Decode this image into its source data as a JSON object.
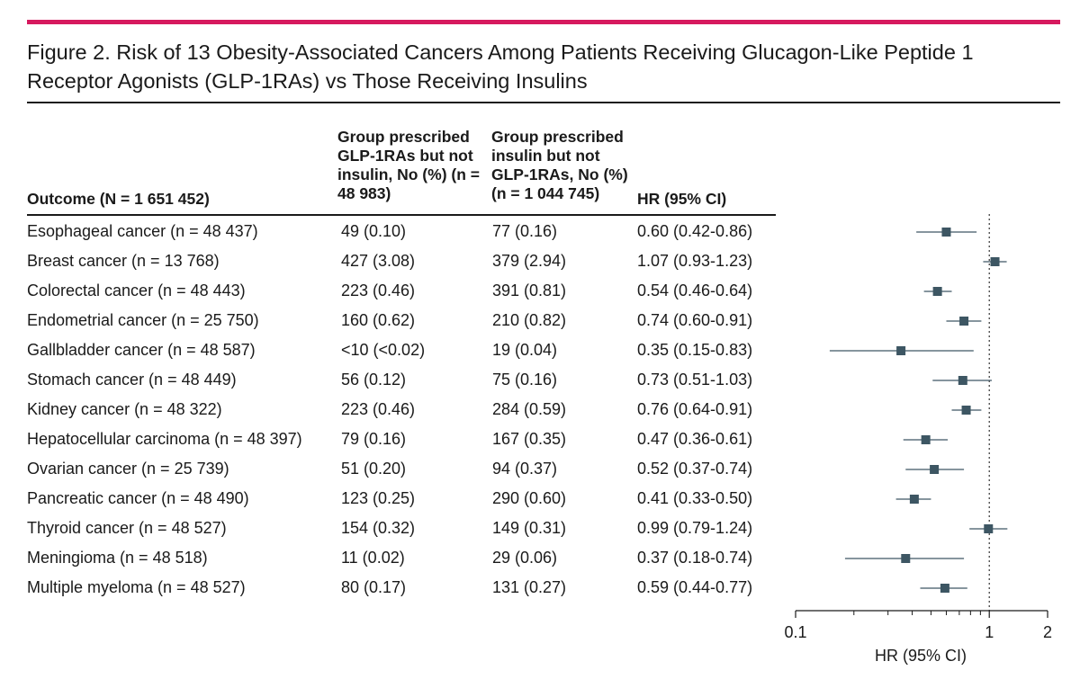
{
  "figure": {
    "title": "Figure 2. Risk of 13 Obesity-Associated Cancers Among Patients Receiving Glucagon-Like Peptide 1 Receptor Agonists (GLP-1RAs) vs Those Receiving Insulins"
  },
  "table": {
    "headers": {
      "outcome": "Outcome (N = 1 651 452)",
      "glp1": "Group prescribed GLP-1RAs but not insulin, No (%) (n = 48 983)",
      "insulin": "Group prescribed insulin but not GLP-1RAs, No (%) (n = 1 044 745)",
      "hr": "HR (95% CI)"
    },
    "rows": [
      {
        "outcome": "Esophageal cancer (n = 48 437)",
        "glp1": "49 (0.10)",
        "insulin": "77 (0.16)",
        "hr": "0.60 (0.42-0.86)"
      },
      {
        "outcome": "Breast cancer (n = 13 768)",
        "glp1": "427 (3.08)",
        "insulin": "379 (2.94)",
        "hr": "1.07 (0.93-1.23)"
      },
      {
        "outcome": "Colorectal cancer (n = 48 443)",
        "glp1": "223 (0.46)",
        "insulin": "391 (0.81)",
        "hr": "0.54 (0.46-0.64)"
      },
      {
        "outcome": "Endometrial cancer (n = 25 750)",
        "glp1": "160 (0.62)",
        "insulin": "210 (0.82)",
        "hr": "0.74 (0.60-0.91)"
      },
      {
        "outcome": "Gallbladder cancer (n = 48 587)",
        "glp1": "<10 (<0.02)",
        "insulin": "19 (0.04)",
        "hr": "0.35 (0.15-0.83)"
      },
      {
        "outcome": "Stomach cancer (n = 48 449)",
        "glp1": "56 (0.12)",
        "insulin": "75 (0.16)",
        "hr": "0.73 (0.51-1.03)"
      },
      {
        "outcome": "Kidney cancer (n = 48 322)",
        "glp1": "223 (0.46)",
        "insulin": "284 (0.59)",
        "hr": "0.76 (0.64-0.91)"
      },
      {
        "outcome": "Hepatocellular carcinoma (n = 48 397)",
        "glp1": "79 (0.16)",
        "insulin": "167 (0.35)",
        "hr": "0.47 (0.36-0.61)"
      },
      {
        "outcome": "Ovarian cancer (n = 25 739)",
        "glp1": "51 (0.20)",
        "insulin": "94 (0.37)",
        "hr": "0.52 (0.37-0.74)"
      },
      {
        "outcome": "Pancreatic cancer (n = 48 490)",
        "glp1": "123 (0.25)",
        "insulin": "290 (0.60)",
        "hr": "0.41 (0.33-0.50)"
      },
      {
        "outcome": "Thyroid cancer (n = 48 527)",
        "glp1": "154 (0.32)",
        "insulin": "149 (0.31)",
        "hr": "0.99 (0.79-1.24)"
      },
      {
        "outcome": "Meningioma (n = 48 518)",
        "glp1": "11 (0.02)",
        "insulin": "29 (0.06)",
        "hr": "0.37 (0.18-0.74)"
      },
      {
        "outcome": "Multiple myeloma (n = 48 527)",
        "glp1": "80 (0.17)",
        "insulin": "131 (0.27)",
        "hr": "0.59 (0.44-0.77)"
      }
    ]
  },
  "chart_data": {
    "type": "scatter",
    "subtype": "forest-plot",
    "xlabel": "HR (95% CI)",
    "xscale": "log",
    "xlim": [
      0.1,
      2
    ],
    "xticks": [
      {
        "value": 0.1,
        "label": "0.1"
      },
      {
        "value": 1,
        "label": "1"
      },
      {
        "value": 2,
        "label": "2"
      }
    ],
    "minor_ticks": [
      0.2,
      0.3,
      0.4,
      0.5,
      0.6,
      0.7,
      0.8,
      0.9
    ],
    "reference_line": 1,
    "marker_color": "#3d5663",
    "points": [
      {
        "hr": 0.6,
        "lower": 0.42,
        "upper": 0.86
      },
      {
        "hr": 1.07,
        "lower": 0.93,
        "upper": 1.23
      },
      {
        "hr": 0.54,
        "lower": 0.46,
        "upper": 0.64
      },
      {
        "hr": 0.74,
        "lower": 0.6,
        "upper": 0.91
      },
      {
        "hr": 0.35,
        "lower": 0.15,
        "upper": 0.83
      },
      {
        "hr": 0.73,
        "lower": 0.51,
        "upper": 1.03
      },
      {
        "hr": 0.76,
        "lower": 0.64,
        "upper": 0.91
      },
      {
        "hr": 0.47,
        "lower": 0.36,
        "upper": 0.61
      },
      {
        "hr": 0.52,
        "lower": 0.37,
        "upper": 0.74
      },
      {
        "hr": 0.41,
        "lower": 0.33,
        "upper": 0.5
      },
      {
        "hr": 0.99,
        "lower": 0.79,
        "upper": 1.24
      },
      {
        "hr": 0.37,
        "lower": 0.18,
        "upper": 0.74
      },
      {
        "hr": 0.59,
        "lower": 0.44,
        "upper": 0.77
      }
    ]
  },
  "colors": {
    "accent_bar": "#d6195e",
    "text": "#1a1a1a",
    "marker": "#3d5663"
  }
}
